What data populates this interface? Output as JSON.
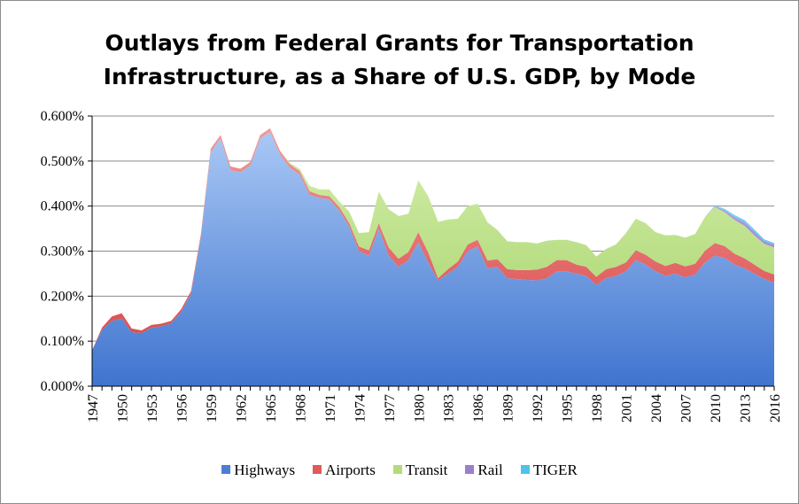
{
  "chart_data": {
    "type": "area",
    "stacked": true,
    "title_line1": "Outlays from Federal Grants for Transportation",
    "title_line2": "Infrastructure, as a Share of U.S. GDP, by Mode",
    "xlabel": "",
    "ylabel": "",
    "ylim": [
      0,
      0.6
    ],
    "y_ticks": [
      "0.000%",
      "0.100%",
      "0.200%",
      "0.300%",
      "0.400%",
      "0.500%",
      "0.600%"
    ],
    "x_ticks": [
      "1947",
      "1950",
      "1953",
      "1956",
      "1959",
      "1962",
      "1965",
      "1968",
      "1971",
      "1974",
      "1977",
      "1980",
      "1983",
      "1986",
      "1989",
      "1992",
      "1995",
      "1998",
      "2001",
      "2004",
      "2007",
      "2010",
      "2013",
      "2016"
    ],
    "x": [
      1947,
      1948,
      1949,
      1950,
      1951,
      1952,
      1953,
      1954,
      1955,
      1956,
      1957,
      1958,
      1959,
      1960,
      1961,
      1962,
      1963,
      1964,
      1965,
      1966,
      1967,
      1968,
      1969,
      1970,
      1971,
      1972,
      1973,
      1974,
      1975,
      1976,
      1977,
      1978,
      1979,
      1980,
      1981,
      1982,
      1983,
      1984,
      1985,
      1986,
      1987,
      1988,
      1989,
      1990,
      1991,
      1992,
      1993,
      1994,
      1995,
      1996,
      1997,
      1998,
      1999,
      2000,
      2001,
      2002,
      2003,
      2004,
      2005,
      2006,
      2007,
      2008,
      2009,
      2010,
      2011,
      2012,
      2013,
      2014,
      2015,
      2016
    ],
    "grid": true,
    "legend_position": "bottom",
    "series": [
      {
        "name": "Highways",
        "color": "#4a7fd6",
        "values": [
          0.08,
          0.125,
          0.145,
          0.15,
          0.12,
          0.118,
          0.13,
          0.133,
          0.14,
          0.165,
          0.205,
          0.33,
          0.52,
          0.55,
          0.48,
          0.475,
          0.49,
          0.55,
          0.565,
          0.515,
          0.485,
          0.47,
          0.425,
          0.418,
          0.415,
          0.39,
          0.355,
          0.3,
          0.29,
          0.35,
          0.29,
          0.265,
          0.28,
          0.32,
          0.275,
          0.235,
          0.25,
          0.265,
          0.3,
          0.31,
          0.262,
          0.265,
          0.24,
          0.238,
          0.236,
          0.235,
          0.24,
          0.255,
          0.255,
          0.25,
          0.245,
          0.225,
          0.24,
          0.245,
          0.255,
          0.28,
          0.27,
          0.255,
          0.245,
          0.25,
          0.242,
          0.248,
          0.275,
          0.29,
          0.285,
          0.27,
          0.262,
          0.25,
          0.238,
          0.23
        ]
      },
      {
        "name": "Airports",
        "color": "#e05a5a",
        "values": [
          0.0,
          0.005,
          0.01,
          0.012,
          0.008,
          0.006,
          0.006,
          0.006,
          0.005,
          0.006,
          0.006,
          0.007,
          0.008,
          0.008,
          0.008,
          0.008,
          0.008,
          0.008,
          0.008,
          0.008,
          0.008,
          0.008,
          0.008,
          0.007,
          0.007,
          0.008,
          0.008,
          0.01,
          0.012,
          0.012,
          0.018,
          0.018,
          0.018,
          0.022,
          0.022,
          0.005,
          0.01,
          0.012,
          0.015,
          0.015,
          0.017,
          0.017,
          0.02,
          0.02,
          0.022,
          0.024,
          0.025,
          0.025,
          0.025,
          0.02,
          0.02,
          0.018,
          0.02,
          0.02,
          0.02,
          0.022,
          0.022,
          0.022,
          0.022,
          0.024,
          0.024,
          0.024,
          0.026,
          0.028,
          0.026,
          0.024,
          0.022,
          0.02,
          0.018,
          0.018
        ]
      },
      {
        "name": "Transit",
        "color": "#b4dc7c",
        "values": [
          0,
          0,
          0,
          0,
          0,
          0,
          0,
          0,
          0,
          0,
          0,
          0,
          0,
          0,
          0,
          0,
          0,
          0,
          0,
          0,
          0.003,
          0.005,
          0.012,
          0.012,
          0.015,
          0.012,
          0.025,
          0.03,
          0.04,
          0.07,
          0.085,
          0.095,
          0.085,
          0.115,
          0.125,
          0.125,
          0.11,
          0.095,
          0.085,
          0.08,
          0.085,
          0.065,
          0.062,
          0.062,
          0.062,
          0.058,
          0.058,
          0.045,
          0.045,
          0.05,
          0.048,
          0.045,
          0.045,
          0.05,
          0.065,
          0.07,
          0.07,
          0.065,
          0.068,
          0.062,
          0.064,
          0.066,
          0.075,
          0.08,
          0.075,
          0.075,
          0.072,
          0.065,
          0.06,
          0.06
        ]
      },
      {
        "name": "Rail",
        "color": "#9a7fd1",
        "values": [
          0,
          0,
          0,
          0,
          0,
          0,
          0,
          0,
          0,
          0,
          0,
          0,
          0,
          0,
          0,
          0,
          0,
          0,
          0,
          0,
          0,
          0,
          0,
          0,
          0,
          0,
          0,
          0,
          0,
          0,
          0,
          0,
          0,
          0,
          0,
          0,
          0,
          0,
          0,
          0,
          0,
          0,
          0,
          0,
          0,
          0,
          0,
          0,
          0,
          0,
          0,
          0,
          0,
          0,
          0,
          0,
          0,
          0,
          0,
          0,
          0,
          0,
          0,
          0.002,
          0.004,
          0.006,
          0.008,
          0.008,
          0.006,
          0.006
        ]
      },
      {
        "name": "TIGER",
        "color": "#4dc3e8",
        "values": [
          0,
          0,
          0,
          0,
          0,
          0,
          0,
          0,
          0,
          0,
          0,
          0,
          0,
          0,
          0,
          0,
          0,
          0,
          0,
          0,
          0,
          0,
          0,
          0,
          0,
          0,
          0,
          0,
          0,
          0,
          0,
          0,
          0,
          0,
          0,
          0,
          0,
          0,
          0,
          0,
          0,
          0,
          0,
          0,
          0,
          0,
          0,
          0,
          0,
          0,
          0,
          0,
          0,
          0,
          0,
          0,
          0,
          0,
          0,
          0,
          0,
          0,
          0,
          0.001,
          0.004,
          0.005,
          0.005,
          0.005,
          0.004,
          0.004
        ]
      }
    ]
  }
}
